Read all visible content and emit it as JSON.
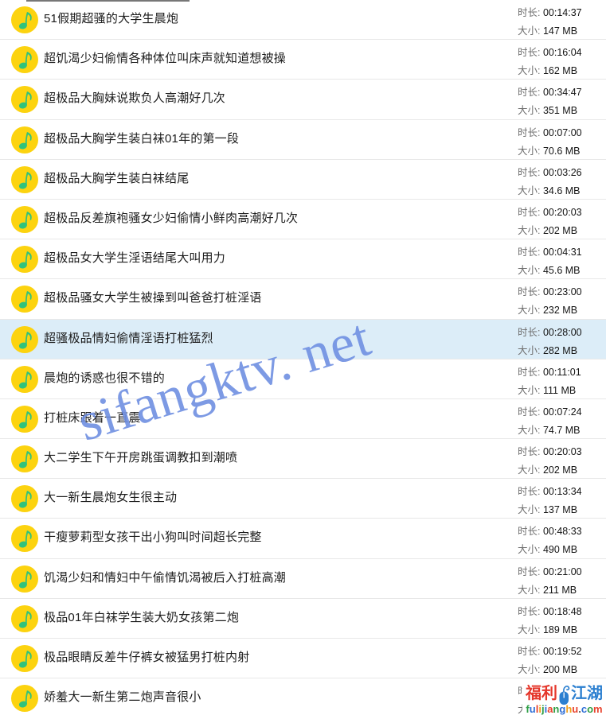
{
  "labels": {
    "duration": "时长:",
    "size": "大小:"
  },
  "rows": [
    {
      "title": "51假期超骚的大学生晨炮",
      "duration": "00:14:37",
      "size": "147 MB"
    },
    {
      "title": "超饥渴少妇偷情各种体位叫床声就知道想被操",
      "duration": "00:16:04",
      "size": "162 MB"
    },
    {
      "title": "超极品大胸妹说欺负人高潮好几次",
      "duration": "00:34:47",
      "size": "351 MB"
    },
    {
      "title": "超极品大胸学生装白袜01年的第一段",
      "duration": "00:07:00",
      "size": "70.6 MB"
    },
    {
      "title": "超极品大胸学生装白袜结尾",
      "duration": "00:03:26",
      "size": "34.6 MB"
    },
    {
      "title": "超极品反差旗袍骚女少妇偷情小鲜肉高潮好几次",
      "duration": "00:20:03",
      "size": "202 MB"
    },
    {
      "title": "超极品女大学生淫语结尾大叫用力",
      "duration": "00:04:31",
      "size": "45.6 MB"
    },
    {
      "title": "超极品骚女大学生被操到叫爸爸打桩淫语",
      "duration": "00:23:00",
      "size": "232 MB"
    },
    {
      "title": "超骚极品情妇偷情淫语打桩猛烈",
      "duration": "00:28:00",
      "size": "282 MB",
      "highlighted": true
    },
    {
      "title": "晨炮的诱惑也很不错的",
      "duration": "00:11:01",
      "size": "111 MB"
    },
    {
      "title": "打桩床跟着一直震",
      "duration": "00:07:24",
      "size": "74.7 MB"
    },
    {
      "title": "大二学生下午开房跳蛋调教扣到潮喷",
      "duration": "00:20:03",
      "size": "202 MB"
    },
    {
      "title": "大一新生晨炮女生很主动",
      "duration": "00:13:34",
      "size": "137 MB"
    },
    {
      "title": "干瘦萝莉型女孩干出小狗叫时间超长完整",
      "duration": "00:48:33",
      "size": "490 MB"
    },
    {
      "title": "饥渴少妇和情妇中午偷情饥渴被后入打桩高潮",
      "duration": "00:21:00",
      "size": "211 MB"
    },
    {
      "title": "极品01年白袜学生装大奶女孩第二炮",
      "duration": "00:18:48",
      "size": "189 MB"
    },
    {
      "title": "极品眼睛反差牛仔裤女被猛男打桩内射",
      "duration": "00:19:52",
      "size": "200 MB"
    },
    {
      "title": "娇羞大一新生第二炮声音很小",
      "duration": "",
      "size": ""
    }
  ],
  "watermark": {
    "text": "sifangktv. net",
    "color": "#7090e2"
  },
  "icon": {
    "name": "qq-music-note-icon",
    "bg_color": "#fcd30f",
    "note_color": "#31c27c"
  },
  "highlight_color": "#dcedf8",
  "logo": {
    "line1_left": "福利",
    "line1_right": "江湖",
    "line1_left_color": "#e5372b",
    "line1_right_color": "#2b7fd0",
    "mouse_color": "#2b7fd0",
    "line2_chars": [
      {
        "c": "f",
        "color": "#2e9e44"
      },
      {
        "c": "u",
        "color": "#2f6fd6"
      },
      {
        "c": "l",
        "color": "#e8432e"
      },
      {
        "c": "i",
        "color": "#f0a01e"
      },
      {
        "c": "j",
        "color": "#2e9e44"
      },
      {
        "c": "i",
        "color": "#2f6fd6"
      },
      {
        "c": "a",
        "color": "#e8432e"
      },
      {
        "c": "n",
        "color": "#2e9e44"
      },
      {
        "c": "g",
        "color": "#2f6fd6"
      },
      {
        "c": "h",
        "color": "#f0a01e"
      },
      {
        "c": "u",
        "color": "#e8432e"
      },
      {
        "c": ".",
        "color": "#555555"
      },
      {
        "c": "c",
        "color": "#2f6fd6"
      },
      {
        "c": "o",
        "color": "#2e9e44"
      },
      {
        "c": "m",
        "color": "#e8432e"
      }
    ]
  }
}
